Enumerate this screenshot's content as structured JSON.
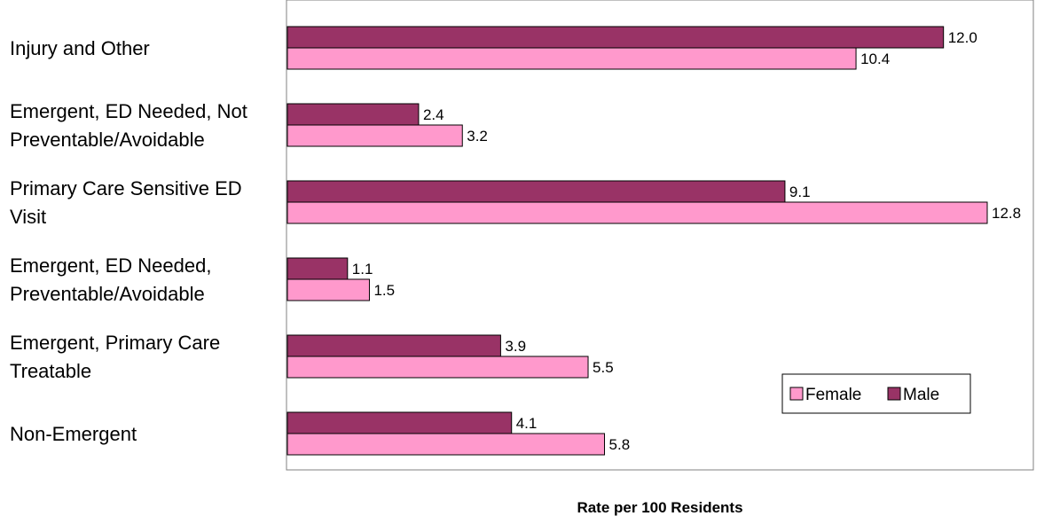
{
  "chart_data": {
    "type": "bar",
    "orientation": "horizontal",
    "categories": [
      [
        "Injury and Other"
      ],
      [
        "Emergent, ED Needed, Not",
        "Preventable/Avoidable"
      ],
      [
        "Primary Care Sensitive ED",
        "Visit"
      ],
      [
        "Emergent, ED Needed,",
        "Preventable/Avoidable"
      ],
      [
        "Emergent, Primary Care",
        "Treatable"
      ],
      [
        "Non-Emergent"
      ]
    ],
    "series": [
      {
        "name": "Male",
        "color": "#993366",
        "values": [
          12.0,
          2.4,
          9.1,
          1.1,
          3.9,
          4.1
        ],
        "labels": [
          "12.0",
          "2.4",
          "9.1",
          "1.1",
          "3.9",
          "4.1"
        ]
      },
      {
        "name": "Female",
        "color": "#ff99cc",
        "values": [
          10.4,
          3.2,
          12.8,
          1.5,
          5.5,
          5.8
        ],
        "labels": [
          "10.4",
          "3.2",
          "12.8",
          "1.5",
          "5.5",
          "5.8"
        ]
      }
    ],
    "xlabel": "Rate per 100 Residents",
    "ylabel": "",
    "xlim": [
      0,
      13.5
    ],
    "grid": false,
    "legend": {
      "position": "bottom-right",
      "order": [
        "Female",
        "Male"
      ]
    }
  }
}
